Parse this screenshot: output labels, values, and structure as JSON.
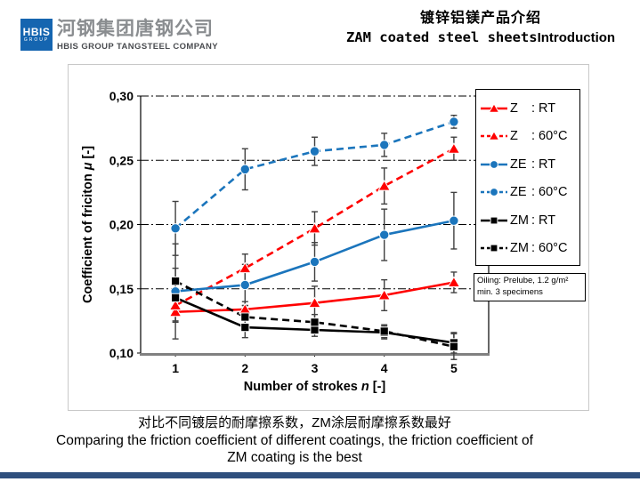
{
  "header": {
    "logo": {
      "square_line1": "HBIS",
      "square_line2": "GROUP",
      "company_cn": "河钢集团唐钢公司",
      "company_en": "HBIS GROUP TANGSTEEL COMPANY",
      "logo_blue": "#1565B0"
    },
    "title_cn": "镀锌铝镁产品介绍",
    "title_en_mono": "ZAM coated steel sheets",
    "title_en_bold": "Introduction"
  },
  "chart_data": {
    "type": "line",
    "title": "",
    "xlabel": "Number of strokes n [-]",
    "xlabel_parts": [
      "Number of strokes ",
      "n",
      " [-]"
    ],
    "ylabel": "Coefficient of friciton μ [-]",
    "ylabel_parts": [
      "Coefficient of friciton ",
      "μ",
      " [-]"
    ],
    "x": [
      1,
      2,
      3,
      4,
      5
    ],
    "ylim": [
      0.1,
      0.3
    ],
    "yticks": [
      0.1,
      0.15,
      0.2,
      0.25,
      0.3
    ],
    "ytick_labels": [
      "0,10",
      "0,15",
      "0,20",
      "0,25",
      "0,30"
    ],
    "grid": "horizontal dash-dot",
    "legend_position": "right",
    "legend_separator": ":",
    "error_bar_color": "#404040",
    "axis_color": "#808080",
    "series": [
      {
        "name": "Z",
        "condition": "RT",
        "color": "#FF0000",
        "style": "solid",
        "marker": "triangle",
        "values": [
          0.132,
          0.134,
          0.139,
          0.145,
          0.155
        ],
        "errors": [
          0.008,
          0.006,
          0.013,
          0.012,
          0.008
        ]
      },
      {
        "name": "Z",
        "condition": "60°C",
        "color": "#FF0000",
        "style": "dashed",
        "marker": "triangle",
        "values": [
          0.137,
          0.166,
          0.197,
          0.23,
          0.259
        ],
        "errors": [
          0.012,
          0.011,
          0.013,
          0.014,
          0.009
        ]
      },
      {
        "name": "ZE",
        "condition": "RT",
        "color": "#1B75BC",
        "style": "solid",
        "marker": "circle",
        "values": [
          0.148,
          0.153,
          0.171,
          0.192,
          0.203
        ],
        "errors": [
          0.037,
          0.016,
          0.015,
          0.02,
          0.022
        ]
      },
      {
        "name": "ZE",
        "condition": "60°C",
        "color": "#1B75BC",
        "style": "dashed",
        "marker": "circle",
        "values": [
          0.197,
          0.243,
          0.257,
          0.262,
          0.28
        ],
        "errors": [
          0.021,
          0.016,
          0.011,
          0.009,
          0.005
        ]
      },
      {
        "name": "ZM",
        "condition": "RT",
        "color": "#000000",
        "style": "solid",
        "marker": "square",
        "values": [
          0.143,
          0.12,
          0.118,
          0.116,
          0.108
        ],
        "errors": [
          0.01,
          0.008,
          0.005,
          0.005,
          0.008
        ]
      },
      {
        "name": "ZM",
        "condition": "60°C",
        "color": "#000000",
        "style": "dashed",
        "marker": "square",
        "values": [
          0.156,
          0.128,
          0.124,
          0.117,
          0.105
        ],
        "errors": [
          0.01,
          0.009,
          0.006,
          0.005,
          0.01
        ]
      }
    ],
    "annotation": {
      "line1": "Oiling: Prelube, 1.2 g/m²",
      "line2": "min. 3 specimens"
    }
  },
  "caption": {
    "cn": "对比不同镀层的耐摩擦系数，ZM涂层耐摩擦系数最好",
    "en1": "Comparing the friction coefficient of different coatings, the friction coefficient of",
    "en2": "ZM coating is the best"
  },
  "footer": {
    "bar_color": "#2F4F7D"
  }
}
